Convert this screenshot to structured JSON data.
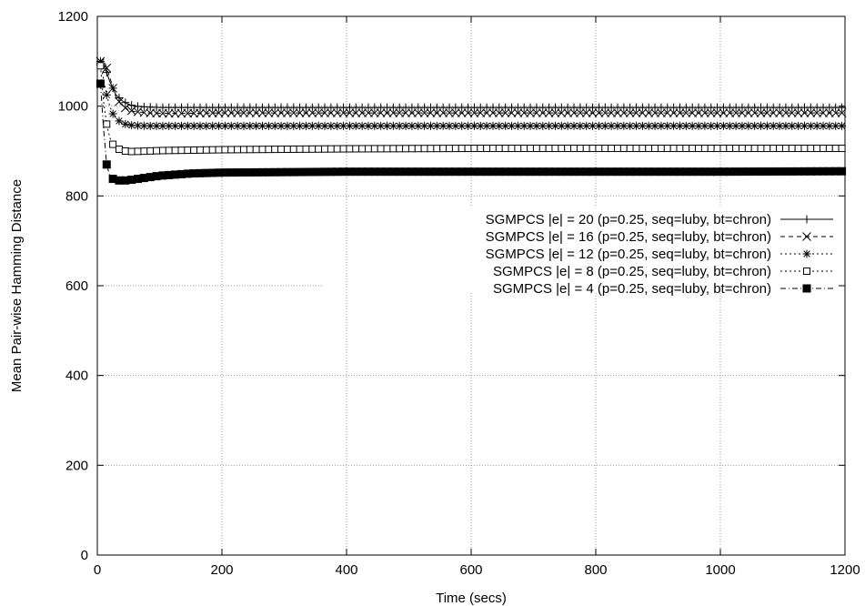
{
  "chart_data": {
    "type": "line",
    "title": "",
    "xlabel": "Time (secs)",
    "ylabel": "Mean Pair-wise Hamming Distance",
    "xlim": [
      0,
      1200
    ],
    "ylim": [
      0,
      1200
    ],
    "xticks": [
      0,
      200,
      400,
      600,
      800,
      1000,
      1200
    ],
    "yticks": [
      0,
      200,
      400,
      600,
      800,
      1000,
      1200
    ],
    "xtick_labels": [
      "0",
      "200",
      "400",
      "600",
      "800",
      "1000",
      "1200"
    ],
    "ytick_labels": [
      "0",
      "200",
      "400",
      "600",
      "800",
      "1000",
      "1200"
    ],
    "grid": true,
    "legend_position": "right, middle-upper",
    "series": [
      {
        "name": "SGMPCS |e| = 20 (p=0.25, seq=luby, bt=chron)",
        "marker": "plus",
        "dash": "solid",
        "x": [
          5,
          10,
          15,
          20,
          25,
          30,
          40,
          50,
          60,
          80,
          100,
          150,
          200,
          300,
          400,
          600,
          800,
          1000,
          1200
        ],
        "y": [
          1100,
          1090,
          1075,
          1055,
          1040,
          1025,
          1012,
          1004,
          1000,
          998,
          997,
          997,
          997,
          997,
          997,
          997,
          997,
          997,
          997
        ]
      },
      {
        "name": "SGMPCS |e| = 16 (p=0.25, seq=luby, bt=chron)",
        "marker": "x",
        "dash": "dashed",
        "x": [
          5,
          10,
          15,
          20,
          25,
          30,
          40,
          50,
          60,
          80,
          100,
          150,
          200,
          300,
          400,
          600,
          800,
          1000,
          1200
        ],
        "y": [
          1100,
          1105,
          1085,
          1065,
          1040,
          1020,
          1000,
          992,
          988,
          985,
          984,
          984,
          985,
          985,
          985,
          985,
          985,
          985,
          985
        ]
      },
      {
        "name": "SGMPCS |e| = 12 (p=0.25, seq=luby, bt=chron)",
        "marker": "star",
        "dash": "dotted",
        "x": [
          5,
          10,
          15,
          20,
          25,
          30,
          40,
          50,
          60,
          80,
          100,
          150,
          200,
          300,
          400,
          600,
          800,
          1000,
          1200
        ],
        "y": [
          1095,
          1060,
          1025,
          1000,
          983,
          972,
          962,
          958,
          957,
          956,
          956,
          956,
          956,
          956,
          956,
          956,
          956,
          956,
          956
        ]
      },
      {
        "name": "SGMPCS |e| = 8 (p=0.25, seq=luby, bt=chron)",
        "marker": "open-square",
        "dash": "dotted",
        "x": [
          5,
          10,
          15,
          20,
          25,
          30,
          40,
          50,
          60,
          80,
          100,
          150,
          200,
          300,
          400,
          600,
          800,
          1000,
          1200
        ],
        "y": [
          1090,
          1010,
          960,
          930,
          915,
          907,
          901,
          899,
          899,
          900,
          901,
          902,
          903,
          904,
          905,
          906,
          906,
          906,
          906
        ]
      },
      {
        "name": "SGMPCS |e| = 4 (p=0.25, seq=luby, bt=chron)",
        "marker": "filled-square",
        "dash": "dash-dot",
        "x": [
          5,
          10,
          15,
          20,
          25,
          30,
          40,
          50,
          60,
          80,
          100,
          150,
          200,
          300,
          400,
          600,
          800,
          1000,
          1200
        ],
        "y": [
          1050,
          950,
          870,
          845,
          838,
          835,
          834,
          835,
          837,
          841,
          845,
          850,
          852,
          853,
          854,
          854,
          854,
          854,
          855
        ]
      }
    ]
  }
}
